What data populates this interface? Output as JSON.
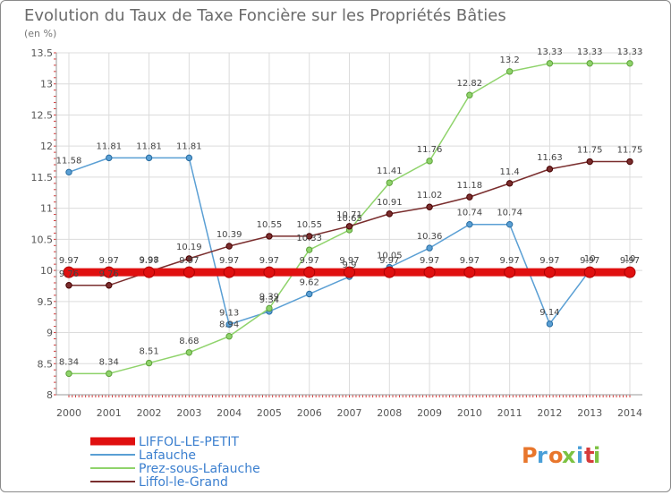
{
  "chart_data": {
    "type": "line",
    "title": "Evolution du Taux de Taxe Foncière sur les Propriétés Bâties",
    "subtitle": "(en %)",
    "xlabel": "",
    "ylabel": "",
    "x": [
      "2000",
      "2001",
      "2002",
      "2003",
      "2004",
      "2005",
      "2006",
      "2007",
      "2008",
      "2009",
      "2010",
      "2011",
      "2012",
      "2013",
      "2014"
    ],
    "ylim": [
      8,
      13.5
    ],
    "yticks": [
      "8",
      "8.5",
      "9",
      "9.5",
      "10",
      "10.5",
      "11",
      "11.5",
      "12",
      "12.5",
      "13",
      "13.5"
    ],
    "legend_position": "bottom-left",
    "series": [
      {
        "name": "Lafauche",
        "color": "#5a9fd4",
        "values": [
          11.58,
          11.81,
          11.81,
          11.81,
          9.13,
          9.34,
          9.62,
          9.9,
          10.05,
          10.36,
          10.74,
          10.74,
          9.14,
          10,
          10
        ],
        "labels": [
          "11.58",
          "11.81",
          "11.81",
          "11.81",
          "9.13",
          "9.34",
          "9.62",
          "9.9",
          "10.05",
          "10.36",
          "10.74",
          "10.74",
          "9.14",
          "10",
          "10"
        ]
      },
      {
        "name": "Prez-sous-Lafauche",
        "color": "#8fd36b",
        "values": [
          8.34,
          8.34,
          8.51,
          8.68,
          8.94,
          9.39,
          10.33,
          10.65,
          11.41,
          11.76,
          12.82,
          13.2,
          13.33,
          13.33,
          13.33
        ],
        "labels": [
          "8.34",
          "8.34",
          "8.51",
          "8.68",
          "8.94",
          "9.39",
          "10.33",
          "10.65",
          "11.41",
          "11.76",
          "12.82",
          "13.2",
          "13.33",
          "13.33",
          "13.33"
        ]
      },
      {
        "name": "Liffol-le-Grand",
        "color": "#7a2e2e",
        "values": [
          9.76,
          9.76,
          9.98,
          10.19,
          10.39,
          10.55,
          10.55,
          10.71,
          10.91,
          11.02,
          11.18,
          11.4,
          11.63,
          11.75,
          11.75
        ],
        "labels": [
          "9.76",
          "9.76",
          "9.98",
          "10.19",
          "10.39",
          "10.55",
          "10.55",
          "10.71",
          "10.91",
          "11.02",
          "11.18",
          "11.4",
          "11.63",
          "11.75",
          "11.75"
        ]
      },
      {
        "name": "LIFFOL-LE-PETIT",
        "color": "#e01010",
        "thick": true,
        "values": [
          9.97,
          9.97,
          9.97,
          9.97,
          9.97,
          9.97,
          9.97,
          9.97,
          9.97,
          9.97,
          9.97,
          9.97,
          9.97,
          9.97,
          9.97
        ],
        "labels": [
          "9.97",
          "9.97",
          "9.97",
          "9.97",
          "9.97",
          "9.97",
          "9.97",
          "9.97",
          "9.97",
          "9.97",
          "9.97",
          "9.97",
          "9.97",
          "9.97",
          "9.97"
        ]
      }
    ],
    "legend": [
      "LIFFOL-LE-PETIT",
      "Lafauche",
      "Prez-sous-Lafauche",
      "Liffol-le-Grand"
    ]
  },
  "logo": {
    "text": "Proxiti",
    "colors": [
      "#e8762c",
      "#4a9fd8",
      "#7cc242",
      "#d63b3b"
    ]
  }
}
